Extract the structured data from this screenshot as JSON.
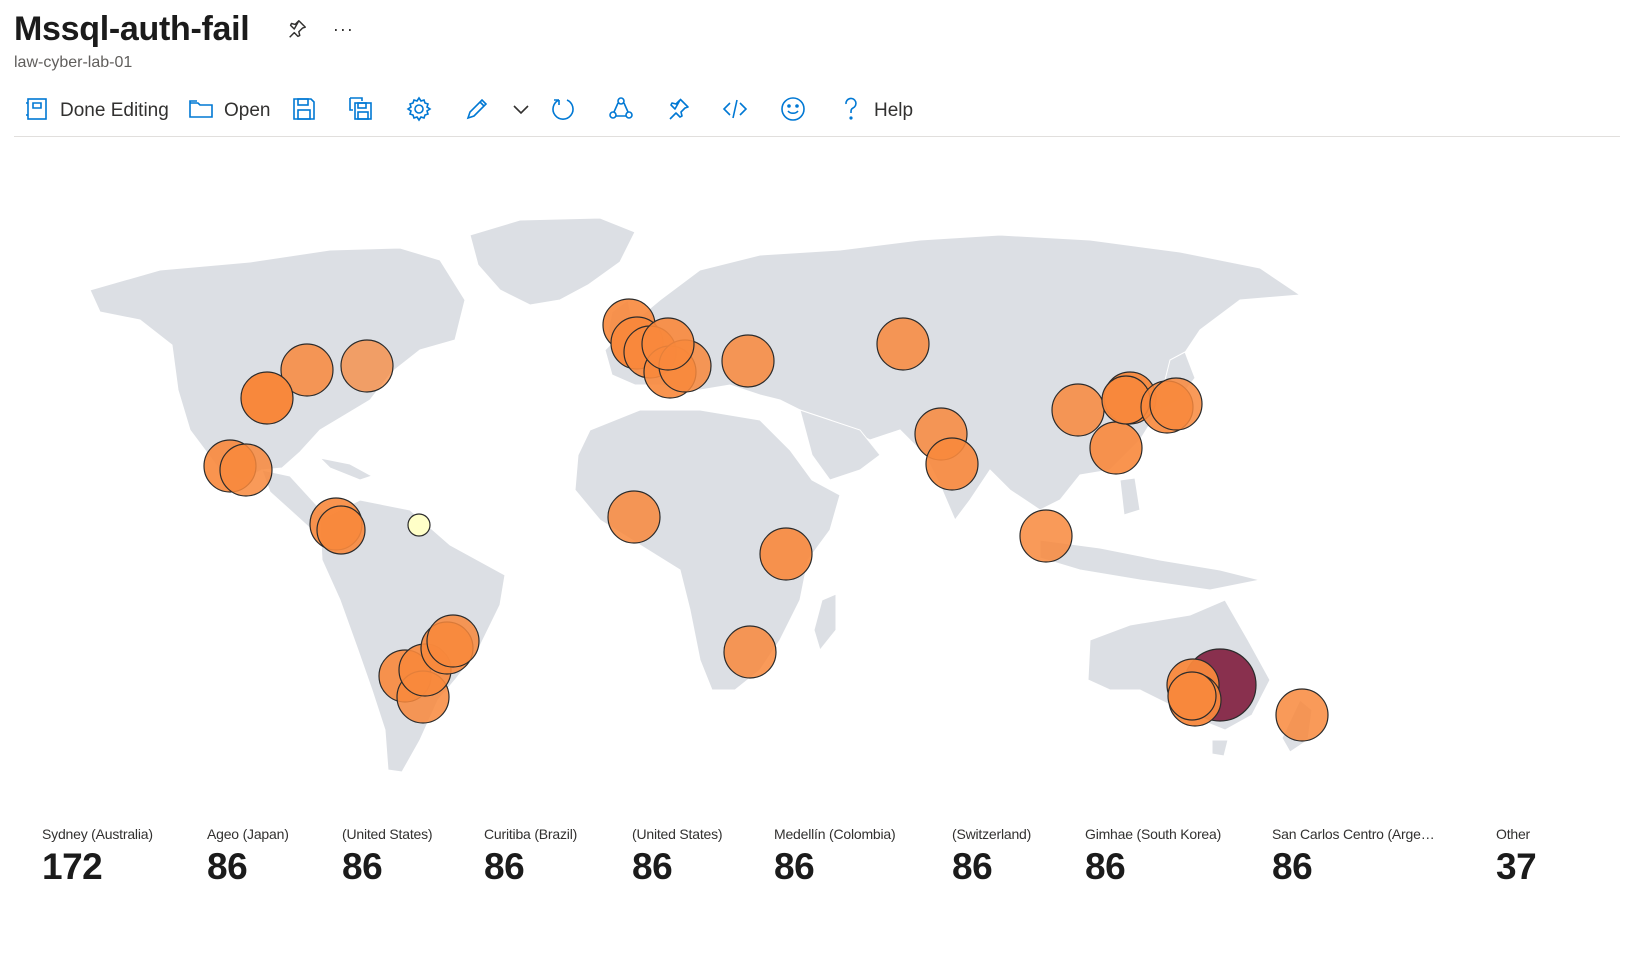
{
  "header": {
    "title": "Mssql-auth-fail",
    "more": "···",
    "subtitle": "law-cyber-lab-01"
  },
  "toolbar": {
    "done_editing": "Done Editing",
    "open": "Open",
    "help": "Help"
  },
  "colors": {
    "accent": "#0078d4",
    "land": "#dcdfe4",
    "bubble_default": "#f8883c",
    "bubble_high": "#7f1d3d",
    "bubble_low": "#ffffc8"
  },
  "tiles": [
    {
      "label": "Sydney (Australia)",
      "value": "172"
    },
    {
      "label": "Ageo (Japan)",
      "value": "86"
    },
    {
      "label": "(United States)",
      "value": "86"
    },
    {
      "label": "Curitiba (Brazil)",
      "value": "86"
    },
    {
      "label": "(United States)",
      "value": "86"
    },
    {
      "label": "Medellín (Colombia)",
      "value": "86"
    },
    {
      "label": "(Switzerland)",
      "value": "86"
    },
    {
      "label": "Gimhae (South Korea)",
      "value": "86"
    },
    {
      "label": "San Carlos Centro (Argent...",
      "value": "86"
    },
    {
      "label": "Other",
      "value": "37"
    }
  ]
}
